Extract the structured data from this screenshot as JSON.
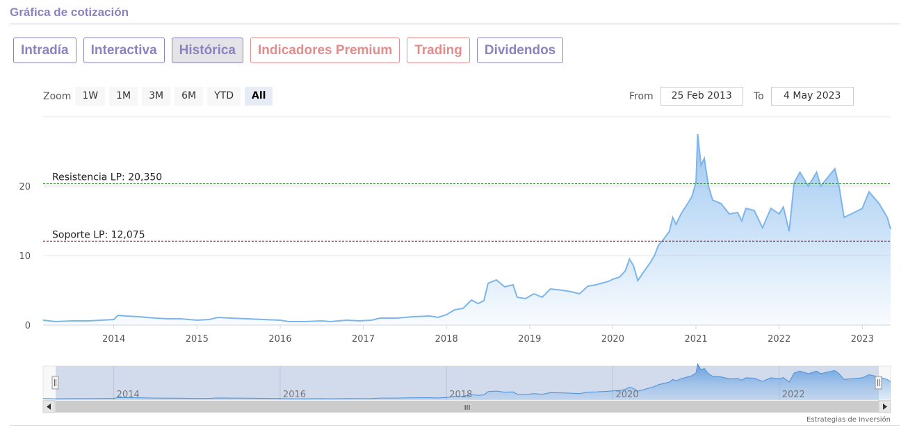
{
  "page": {
    "title": "Gráfica de cotización",
    "tabs": [
      {
        "label": "Intradía",
        "state": "normal"
      },
      {
        "label": "Interactiva",
        "state": "normal"
      },
      {
        "label": "Histórica",
        "state": "active"
      },
      {
        "label": "Indicadores Premium",
        "state": "premium"
      },
      {
        "label": "Trading",
        "state": "premium"
      },
      {
        "label": "Dividendos",
        "state": "normal"
      }
    ]
  },
  "range_selector": {
    "zoom_label": "Zoom",
    "buttons": [
      "1W",
      "1M",
      "3M",
      "6M",
      "YTD",
      "All"
    ],
    "selected": "All",
    "from_label": "From",
    "from_value": "25 Feb 2013",
    "to_label": "To",
    "to_value": "4 May 2023"
  },
  "navigator": {
    "year_labels": [
      "2014",
      "2016",
      "2018",
      "2020",
      "2022"
    ],
    "scroll_grip": "III"
  },
  "credit": "Estrategias de Inversión",
  "colors": {
    "brand": "#8c82bd",
    "premium": "#e08d8d",
    "series_line": "#7cb5ec",
    "resistance_line": "#2e8b2e",
    "support_line": "#b00020"
  },
  "chart_data": {
    "type": "area",
    "ylim": [
      0,
      28
    ],
    "yticks": [
      0,
      10,
      20
    ],
    "xticks": [
      "2014",
      "2015",
      "2016",
      "2017",
      "2018",
      "2019",
      "2020",
      "2021",
      "2022",
      "2023"
    ],
    "grid": true,
    "series": [
      {
        "points": [
          [
            2013.15,
            0.7
          ],
          [
            2013.3,
            0.5
          ],
          [
            2013.5,
            0.6
          ],
          [
            2013.7,
            0.6
          ],
          [
            2013.85,
            0.7
          ],
          [
            2014.0,
            0.8
          ],
          [
            2014.05,
            1.4
          ],
          [
            2014.15,
            1.3
          ],
          [
            2014.3,
            1.2
          ],
          [
            2014.5,
            1.0
          ],
          [
            2014.65,
            0.9
          ],
          [
            2014.8,
            0.9
          ],
          [
            2015.0,
            0.7
          ],
          [
            2015.15,
            0.8
          ],
          [
            2015.25,
            1.1
          ],
          [
            2015.4,
            1.0
          ],
          [
            2015.6,
            0.9
          ],
          [
            2015.8,
            0.8
          ],
          [
            2016.0,
            0.7
          ],
          [
            2016.1,
            0.5
          ],
          [
            2016.3,
            0.5
          ],
          [
            2016.5,
            0.6
          ],
          [
            2016.6,
            0.5
          ],
          [
            2016.8,
            0.7
          ],
          [
            2016.95,
            0.6
          ],
          [
            2017.1,
            0.7
          ],
          [
            2017.2,
            1.0
          ],
          [
            2017.4,
            1.0
          ],
          [
            2017.6,
            1.2
          ],
          [
            2017.8,
            1.3
          ],
          [
            2017.9,
            1.1
          ],
          [
            2018.0,
            1.5
          ],
          [
            2018.1,
            2.2
          ],
          [
            2018.2,
            2.4
          ],
          [
            2018.3,
            3.6
          ],
          [
            2018.38,
            3.1
          ],
          [
            2018.45,
            3.5
          ],
          [
            2018.5,
            6.0
          ],
          [
            2018.6,
            6.5
          ],
          [
            2018.7,
            5.5
          ],
          [
            2018.8,
            5.8
          ],
          [
            2018.85,
            4.0
          ],
          [
            2018.95,
            3.8
          ],
          [
            2019.05,
            4.5
          ],
          [
            2019.15,
            4.0
          ],
          [
            2019.25,
            5.2
          ],
          [
            2019.4,
            5.0
          ],
          [
            2019.5,
            4.8
          ],
          [
            2019.6,
            4.5
          ],
          [
            2019.7,
            5.6
          ],
          [
            2019.8,
            5.8
          ],
          [
            2019.95,
            6.3
          ],
          [
            2020.0,
            6.6
          ],
          [
            2020.08,
            6.9
          ],
          [
            2020.15,
            7.8
          ],
          [
            2020.2,
            9.5
          ],
          [
            2020.25,
            8.5
          ],
          [
            2020.3,
            6.4
          ],
          [
            2020.38,
            7.8
          ],
          [
            2020.45,
            9.0
          ],
          [
            2020.5,
            10.0
          ],
          [
            2020.55,
            11.5
          ],
          [
            2020.62,
            12.5
          ],
          [
            2020.68,
            13.5
          ],
          [
            2020.72,
            15.5
          ],
          [
            2020.76,
            14.5
          ],
          [
            2020.82,
            16.0
          ],
          [
            2020.9,
            17.5
          ],
          [
            2020.95,
            18.5
          ],
          [
            2021.0,
            20.5
          ],
          [
            2021.02,
            27.5
          ],
          [
            2021.06,
            23.0
          ],
          [
            2021.1,
            24.0
          ],
          [
            2021.15,
            20.0
          ],
          [
            2021.2,
            18.0
          ],
          [
            2021.3,
            17.5
          ],
          [
            2021.4,
            16.0
          ],
          [
            2021.5,
            16.2
          ],
          [
            2021.55,
            15.0
          ],
          [
            2021.6,
            16.8
          ],
          [
            2021.7,
            16.5
          ],
          [
            2021.8,
            14.0
          ],
          [
            2021.9,
            16.8
          ],
          [
            2022.0,
            16.0
          ],
          [
            2022.05,
            17.0
          ],
          [
            2022.12,
            13.5
          ],
          [
            2022.18,
            20.5
          ],
          [
            2022.25,
            22.0
          ],
          [
            2022.35,
            20.0
          ],
          [
            2022.45,
            22.0
          ],
          [
            2022.5,
            20.0
          ],
          [
            2022.6,
            21.5
          ],
          [
            2022.67,
            22.5
          ],
          [
            2022.72,
            20.0
          ],
          [
            2022.78,
            15.5
          ],
          [
            2022.9,
            16.2
          ],
          [
            2023.0,
            16.8
          ],
          [
            2023.08,
            19.2
          ],
          [
            2023.2,
            17.5
          ],
          [
            2023.3,
            15.5
          ],
          [
            2023.34,
            13.8
          ]
        ]
      }
    ],
    "annotations": [
      {
        "label": "Resistencia LP: 20,350",
        "value": 20.35,
        "style": "dashed",
        "color": "#2e8b2e"
      },
      {
        "label": "Soporte LP: 12,075",
        "value": 12.075,
        "style": "dashed",
        "color": "#b00020"
      }
    ]
  }
}
